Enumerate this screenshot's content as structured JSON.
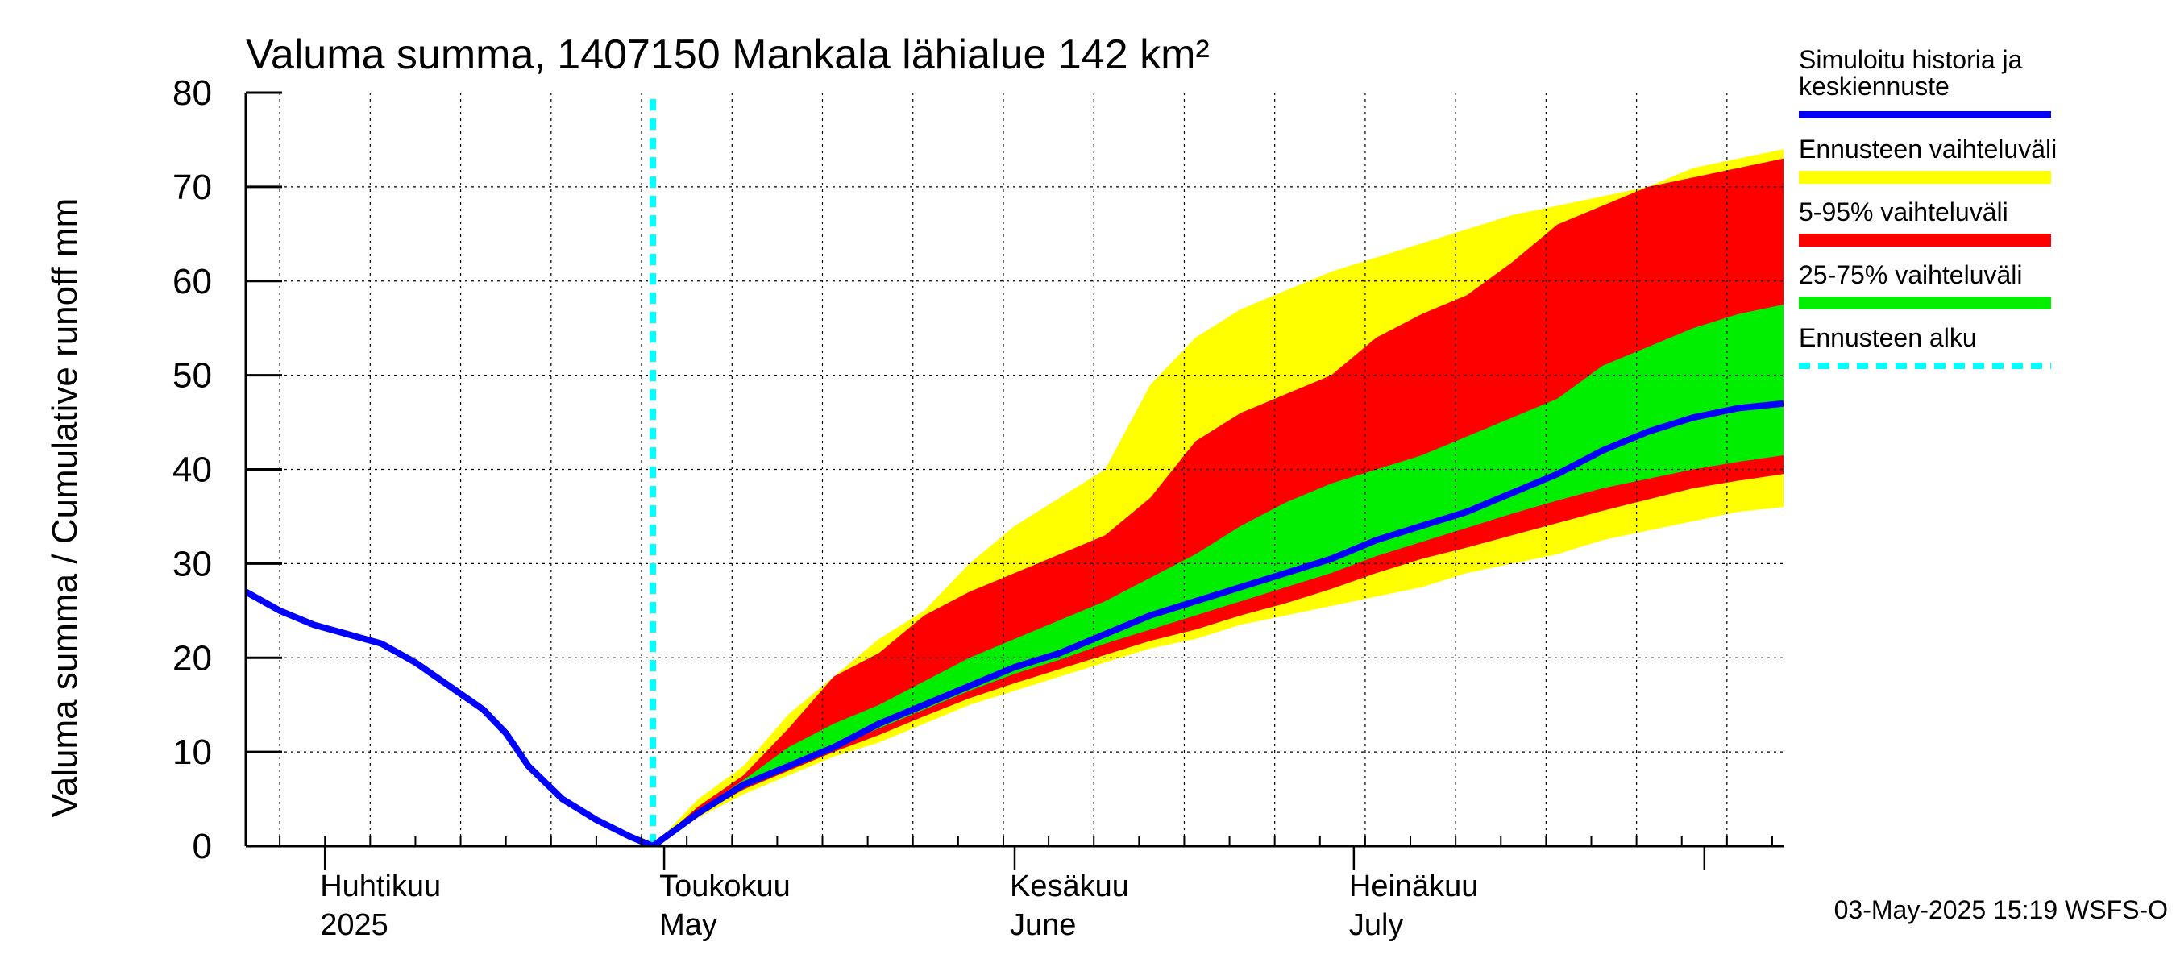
{
  "chart_data": {
    "type": "area",
    "title": "Valuma summa, 1407150 Mankala lähialue 142 km²",
    "ylabel": "Valuma summa / Cumulative runoff    mm",
    "xlabel": "",
    "ylim": [
      0,
      80
    ],
    "xlim": [
      "2025-03-25",
      "2025-08-08"
    ],
    "yticks": [
      0,
      10,
      20,
      30,
      40,
      50,
      60,
      70,
      80
    ],
    "grid": true,
    "month_labels": [
      {
        "date": "2025-04-01",
        "line1": "Huhtikuu",
        "line2": "2025"
      },
      {
        "date": "2025-05-01",
        "line1": "Toukokuu",
        "line2": "May"
      },
      {
        "date": "2025-06-01",
        "line1": "Kesäkuu",
        "line2": "June"
      },
      {
        "date": "2025-07-01",
        "line1": "Heinäkuu",
        "line2": "July"
      }
    ],
    "forecast_start": "2025-04-30",
    "legend_position": "right",
    "legend": [
      {
        "label": "Simuloitu historia ja keskiennuste",
        "color": "#0000ff",
        "style": "line"
      },
      {
        "label": "Ennusteen vaihteluväli",
        "color": "#ffff00",
        "style": "band"
      },
      {
        "label": "5-95% vaihteluväli",
        "color": "#ff0000",
        "style": "band"
      },
      {
        "label": "25-75% vaihteluväli",
        "color": "#00ee00",
        "style": "band"
      },
      {
        "label": "Ennusteen alku",
        "color": "#00ffff",
        "style": "dashed"
      }
    ],
    "history": {
      "x": [
        "2025-03-25",
        "2025-03-28",
        "2025-03-31",
        "2025-04-03",
        "2025-04-06",
        "2025-04-09",
        "2025-04-12",
        "2025-04-15",
        "2025-04-17",
        "2025-04-19",
        "2025-04-22",
        "2025-04-25",
        "2025-04-28",
        "2025-04-30"
      ],
      "values": [
        27,
        25,
        23.5,
        22.5,
        21.5,
        19.5,
        17,
        14.5,
        12,
        8.5,
        5,
        2.8,
        1,
        0
      ]
    },
    "forecast_x": [
      "2025-04-30",
      "2025-05-04",
      "2025-05-08",
      "2025-05-12",
      "2025-05-16",
      "2025-05-20",
      "2025-05-24",
      "2025-05-28",
      "2025-06-01",
      "2025-06-05",
      "2025-06-09",
      "2025-06-13",
      "2025-06-17",
      "2025-06-21",
      "2025-06-25",
      "2025-06-29",
      "2025-07-03",
      "2025-07-07",
      "2025-07-11",
      "2025-07-15",
      "2025-07-19",
      "2025-07-23",
      "2025-07-27",
      "2025-07-31",
      "2025-08-04",
      "2025-08-08"
    ],
    "series": [
      {
        "name": "Simuloitu historia ja keskiennuste",
        "values": [
          0,
          3.5,
          6.5,
          8.5,
          10.5,
          13,
          15,
          17,
          19,
          20.5,
          22.5,
          24.5,
          26,
          27.5,
          29,
          30.5,
          32.5,
          34,
          35.5,
          37.5,
          39.5,
          42,
          44,
          45.5,
          46.5,
          47
        ]
      },
      {
        "name": "Ennusteen vaihteluväli (min)",
        "values": [
          0,
          3,
          5.5,
          7.5,
          9.5,
          11,
          13,
          15,
          16.5,
          18,
          19.5,
          21,
          22,
          23.5,
          24.5,
          25.5,
          26.5,
          27.5,
          29,
          30,
          31,
          32.5,
          33.5,
          34.5,
          35.5,
          36
        ]
      },
      {
        "name": "Ennusteen vaihteluväli (max)",
        "values": [
          0,
          5,
          8.5,
          14,
          18,
          22,
          25,
          30,
          34,
          37,
          40,
          49,
          54,
          57,
          59,
          61,
          62.5,
          64,
          65.5,
          67,
          68,
          69,
          70,
          72,
          73,
          74
        ]
      },
      {
        "name": "5-95% vaihteluväli (min)",
        "values": [
          0,
          3.3,
          6,
          8,
          10,
          11.8,
          13.8,
          15.7,
          17.3,
          18.8,
          20.3,
          21.8,
          23,
          24.5,
          25.8,
          27.3,
          29,
          30.5,
          31.7,
          33,
          34.3,
          35.6,
          36.8,
          38,
          38.8,
          39.5
        ]
      },
      {
        "name": "5-95% vaihteluväli (max)",
        "values": [
          0,
          4.2,
          7.5,
          12.5,
          18,
          20.5,
          24.5,
          27,
          29,
          31,
          33,
          37,
          43,
          46,
          48,
          50,
          54,
          56.5,
          58.5,
          62,
          66,
          68,
          70,
          71,
          72,
          73
        ]
      },
      {
        "name": "25-75% vaihteluväli (min)",
        "values": [
          0,
          3.4,
          6.3,
          8.5,
          10.5,
          12.5,
          14.5,
          16.5,
          18.3,
          19.8,
          21.5,
          23,
          24.5,
          26,
          27.5,
          29,
          30.8,
          32.3,
          33.8,
          35.3,
          36.7,
          38,
          39,
          40,
          40.8,
          41.5
        ]
      },
      {
        "name": "25-75% vaihteluväli (max)",
        "values": [
          0,
          3.8,
          7,
          10.5,
          13,
          15,
          17.5,
          20,
          22,
          24,
          26,
          28.5,
          31,
          34,
          36.5,
          38.5,
          40,
          41.5,
          43.5,
          45.5,
          47.5,
          51,
          53,
          55,
          56.5,
          57.5
        ]
      }
    ]
  },
  "footer": {
    "timestamp": "03-May-2025 15:19 WSFS-O"
  }
}
